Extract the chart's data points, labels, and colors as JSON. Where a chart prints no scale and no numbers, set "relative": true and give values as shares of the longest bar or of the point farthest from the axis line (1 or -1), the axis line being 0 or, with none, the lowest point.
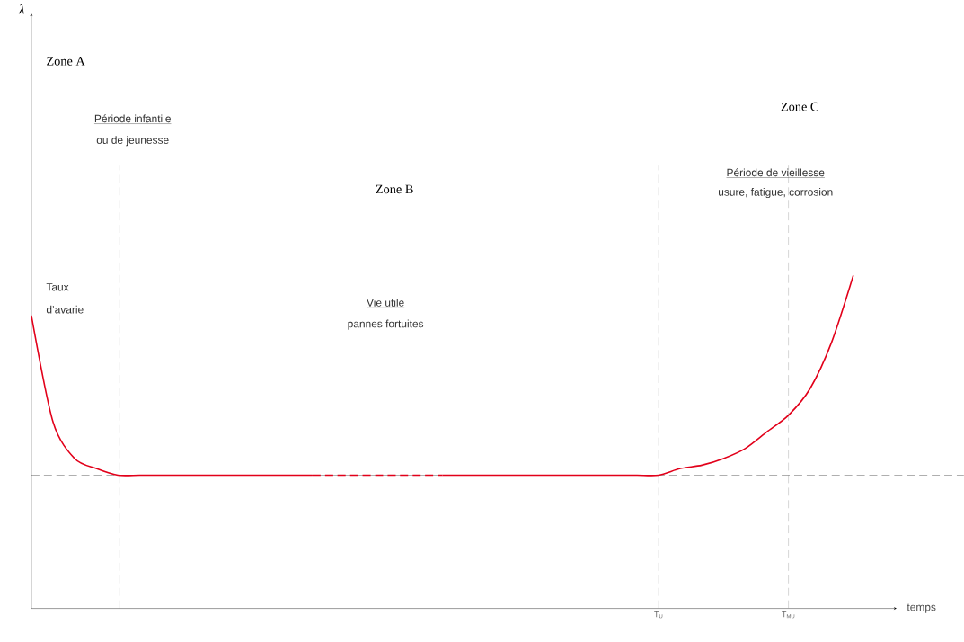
{
  "chart_data": {
    "type": "line",
    "relative": true,
    "xlabel": "temps",
    "categories": [
      null,
      null,
      null,
      null,
      null,
      null,
      null,
      null,
      null,
      null,
      null,
      null,
      null,
      null,
      null,
      null,
      null,
      null,
      null,
      null,
      null,
      null,
      null,
      null,
      null,
      null,
      null,
      null,
      null,
      "T$_{U}$",
      null,
      null,
      null,
      null,
      null,
      "T$_{MU}$",
      null,
      null,
      null,
      null,
      null
    ],
    "series": [
      {
        "color": "#e2001a",
        "line_style": "solid",
        "values": [
          0.88,
          0.56,
          0.45,
          0.42,
          0.4,
          0.4,
          0.4,
          0.4,
          0.4,
          0.4,
          0.4,
          0.4,
          0.4,
          0.4,
          null,
          null,
          null,
          null,
          null,
          null,
          null,
          null,
          null,
          null,
          null,
          null,
          null,
          null,
          null,
          null,
          null,
          null,
          null,
          null,
          null,
          null,
          null,
          null,
          null,
          null,
          null
        ]
      },
      {
        "color": "#e2001a",
        "line_style": "dashed",
        "values": [
          null,
          null,
          null,
          null,
          null,
          null,
          null,
          null,
          null,
          null,
          null,
          null,
          null,
          0.4,
          0.4,
          0.4,
          0.4,
          0.4,
          0.4,
          0.4,
          null,
          null,
          null,
          null,
          null,
          null,
          null,
          null,
          null,
          null,
          null,
          null,
          null,
          null,
          null,
          null,
          null,
          null,
          null,
          null,
          null
        ]
      },
      {
        "color": "#e2001a",
        "line_style": "solid",
        "values": [
          null,
          null,
          null,
          null,
          null,
          null,
          null,
          null,
          null,
          null,
          null,
          null,
          null,
          null,
          null,
          null,
          null,
          null,
          null,
          0.4,
          0.4,
          0.4,
          0.4,
          0.4,
          0.4,
          0.4,
          0.4,
          0.4,
          0.4,
          0.4,
          0.42,
          0.43,
          0.45,
          0.48,
          0.53,
          0.58,
          0.66,
          0.8,
          1.0,
          null,
          null
        ]
      }
    ],
    "grid": "x",
    "ref_lines": [
      {
        "axis": "y",
        "value": 0.4,
        "color": "#333333",
        "line_style": "dashed"
      }
    ],
    "annotations": [
      "Zone A",
      "Période infantile",
      "ou de jeunesse",
      "Taux",
      "d’avarie",
      "Zone B",
      "Vie utile",
      "pannes fortuites",
      "Zone C",
      "Période de vieillesse",
      "usure, fatigue, corrosion",
      "λ"
    ]
  }
}
